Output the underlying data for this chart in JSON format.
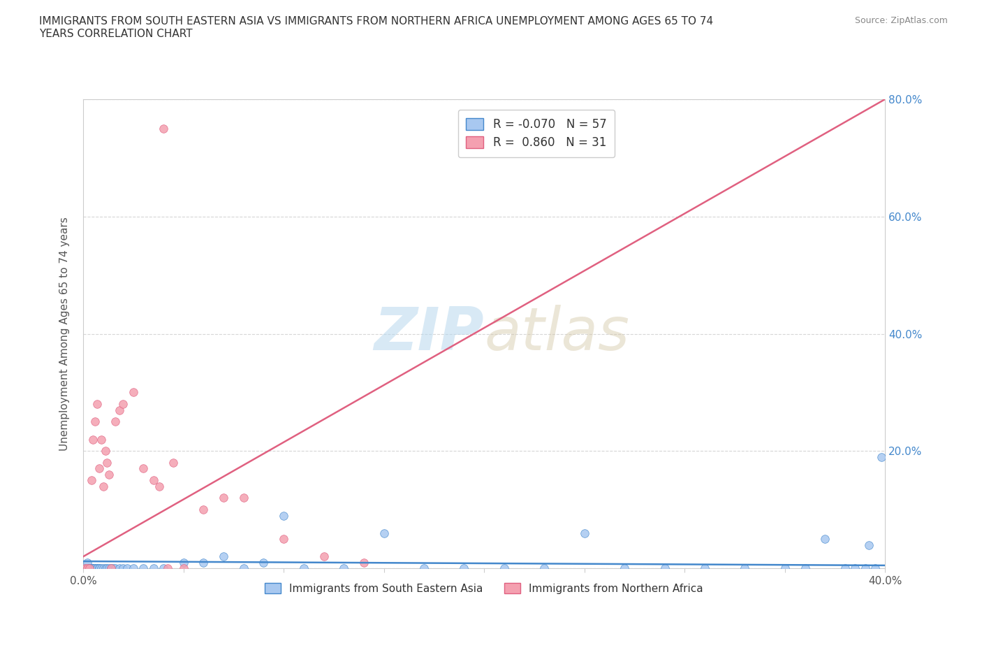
{
  "title": "IMMIGRANTS FROM SOUTH EASTERN ASIA VS IMMIGRANTS FROM NORTHERN AFRICA UNEMPLOYMENT AMONG AGES 65 TO 74\nYEARS CORRELATION CHART",
  "source": "Source: ZipAtlas.com",
  "xlabel": "",
  "ylabel": "Unemployment Among Ages 65 to 74 years",
  "xlim": [
    0.0,
    0.4
  ],
  "ylim": [
    0.0,
    0.8
  ],
  "xticks": [
    0.0,
    0.05,
    0.1,
    0.15,
    0.2,
    0.25,
    0.3,
    0.35,
    0.4
  ],
  "yticks": [
    0.0,
    0.2,
    0.4,
    0.6,
    0.8
  ],
  "color_sea": "#a8c8f0",
  "color_naf": "#f4a0b0",
  "trendline_sea": "#4488cc",
  "trendline_naf": "#e06080",
  "R_sea": -0.07,
  "N_sea": 57,
  "R_naf": 0.86,
  "N_naf": 31,
  "watermark_zip": "ZIP",
  "watermark_atlas": "atlas",
  "background": "#ffffff",
  "legend_label_sea": "Immigrants from South Eastern Asia",
  "legend_label_naf": "Immigrants from Northern Africa",
  "sea_x": [
    0.001,
    0.002,
    0.002,
    0.003,
    0.003,
    0.004,
    0.004,
    0.005,
    0.005,
    0.006,
    0.006,
    0.007,
    0.007,
    0.008,
    0.008,
    0.009,
    0.01,
    0.011,
    0.012,
    0.013,
    0.014,
    0.015,
    0.016,
    0.018,
    0.02,
    0.022,
    0.025,
    0.03,
    0.035,
    0.04,
    0.05,
    0.06,
    0.07,
    0.08,
    0.09,
    0.1,
    0.11,
    0.13,
    0.15,
    0.17,
    0.19,
    0.21,
    0.23,
    0.25,
    0.27,
    0.29,
    0.31,
    0.33,
    0.35,
    0.36,
    0.37,
    0.38,
    0.385,
    0.39,
    0.392,
    0.395,
    0.398
  ],
  "sea_y": [
    0.0,
    0.0,
    0.01,
    0.0,
    0.0,
    0.0,
    0.0,
    0.0,
    0.0,
    0.0,
    0.0,
    0.0,
    0.0,
    0.0,
    0.0,
    0.0,
    0.0,
    0.0,
    0.0,
    0.0,
    0.0,
    0.0,
    0.0,
    0.0,
    0.0,
    0.0,
    0.0,
    0.0,
    0.0,
    0.0,
    0.01,
    0.01,
    0.02,
    0.0,
    0.01,
    0.09,
    0.0,
    0.0,
    0.06,
    0.0,
    0.0,
    0.0,
    0.0,
    0.06,
    0.0,
    0.0,
    0.0,
    0.0,
    0.0,
    0.0,
    0.05,
    0.0,
    0.0,
    0.0,
    0.04,
    0.0,
    0.19
  ],
  "naf_x": [
    0.001,
    0.002,
    0.003,
    0.004,
    0.005,
    0.006,
    0.007,
    0.008,
    0.009,
    0.01,
    0.011,
    0.012,
    0.013,
    0.014,
    0.016,
    0.018,
    0.02,
    0.025,
    0.03,
    0.035,
    0.04,
    0.045,
    0.05,
    0.06,
    0.07,
    0.08,
    0.1,
    0.12,
    0.14,
    0.038,
    0.042
  ],
  "naf_y": [
    0.0,
    0.0,
    0.0,
    0.15,
    0.22,
    0.25,
    0.28,
    0.17,
    0.22,
    0.14,
    0.2,
    0.18,
    0.16,
    0.0,
    0.25,
    0.27,
    0.28,
    0.3,
    0.17,
    0.15,
    0.75,
    0.18,
    0.0,
    0.1,
    0.12,
    0.12,
    0.05,
    0.02,
    0.01,
    0.14,
    0.0
  ],
  "sea_trendline_x": [
    0.0,
    0.4
  ],
  "sea_trendline_y": [
    0.012,
    0.005
  ],
  "naf_trendline_x": [
    0.0,
    0.4
  ],
  "naf_trendline_y": [
    0.02,
    0.8
  ]
}
